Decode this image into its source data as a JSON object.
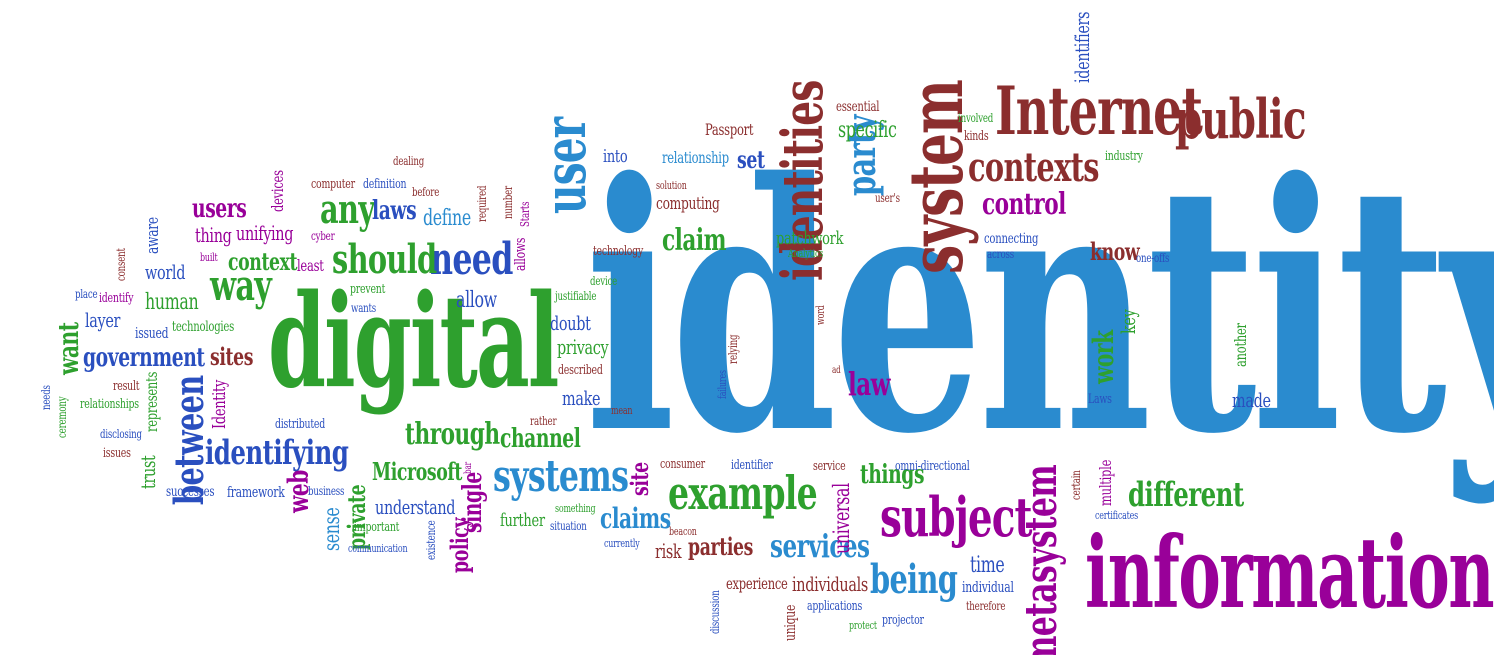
{
  "words": [
    {
      "text": "identity",
      "color": "#2a8bcf"
    },
    {
      "text": "information",
      "color": "#990099"
    },
    {
      "text": "digital",
      "color": "#2ea02e"
    },
    {
      "text": "Internet",
      "color": "#8b2e2e"
    },
    {
      "text": "public",
      "color": "#8b2e2e"
    },
    {
      "text": "system",
      "color": "#8b2e2e"
    },
    {
      "text": "identities",
      "color": "#8b2e2e"
    },
    {
      "text": "contexts",
      "color": "#8b2e2e"
    },
    {
      "text": "control",
      "color": "#990099"
    },
    {
      "text": "party",
      "color": "#2a8bcf"
    },
    {
      "text": "user",
      "color": "#2a8bcf"
    },
    {
      "text": "need",
      "color": "#2a4fbf"
    },
    {
      "text": "should",
      "color": "#2ea02e"
    },
    {
      "text": "any",
      "color": "#2ea02e"
    },
    {
      "text": "way",
      "color": "#2ea02e"
    },
    {
      "text": "laws",
      "color": "#2a4fbf"
    },
    {
      "text": "define",
      "color": "#2a8bcf"
    },
    {
      "text": "context",
      "color": "#2ea02e"
    },
    {
      "text": "users",
      "color": "#990099"
    },
    {
      "text": "thing",
      "color": "#990099"
    },
    {
      "text": "unifying",
      "color": "#990099"
    },
    {
      "text": "world",
      "color": "#2a4fbf"
    },
    {
      "text": "human",
      "color": "#2ea02e"
    },
    {
      "text": "layer",
      "color": "#2a4fbf"
    },
    {
      "text": "want",
      "color": "#2ea02e"
    },
    {
      "text": "government",
      "color": "#2a4fbf"
    },
    {
      "text": "sites",
      "color": "#8b2e2e"
    },
    {
      "text": "between",
      "color": "#2a4fbf"
    },
    {
      "text": "identifying",
      "color": "#2a4fbf"
    },
    {
      "text": "through",
      "color": "#2ea02e"
    },
    {
      "text": "channel",
      "color": "#2ea02e"
    },
    {
      "text": "systems",
      "color": "#2a8bcf"
    },
    {
      "text": "example",
      "color": "#2ea02e"
    },
    {
      "text": "subject",
      "color": "#990099"
    },
    {
      "text": "metasystem",
      "color": "#990099"
    },
    {
      "text": "being",
      "color": "#2a8bcf"
    },
    {
      "text": "services",
      "color": "#2a8bcf"
    },
    {
      "text": "claims",
      "color": "#2a8bcf"
    },
    {
      "text": "parties",
      "color": "#8b2e2e"
    },
    {
      "text": "different",
      "color": "#2ea02e"
    },
    {
      "text": "claim",
      "color": "#2ea02e"
    },
    {
      "text": "law",
      "color": "#990099"
    },
    {
      "text": "allow",
      "color": "#2a4fbf"
    },
    {
      "text": "Microsoft",
      "color": "#2ea02e"
    },
    {
      "text": "web",
      "color": "#990099"
    },
    {
      "text": "things",
      "color": "#2ea02e"
    },
    {
      "text": "site",
      "color": "#990099"
    },
    {
      "text": "set",
      "color": "#2a4fbf"
    },
    {
      "text": "specific",
      "color": "#2ea02e"
    },
    {
      "text": "know",
      "color": "#8b2e2e"
    },
    {
      "text": "work",
      "color": "#2ea02e"
    },
    {
      "text": "key",
      "color": "#2ea02e"
    },
    {
      "text": "made",
      "color": "#2a4fbf"
    },
    {
      "text": "time",
      "color": "#2a4fbf"
    },
    {
      "text": "make",
      "color": "#2a4fbf"
    },
    {
      "text": "privacy",
      "color": "#2ea02e"
    },
    {
      "text": "doubt",
      "color": "#2a4fbf"
    },
    {
      "text": "understand",
      "color": "#2a4fbf"
    },
    {
      "text": "Identity",
      "color": "#990099"
    },
    {
      "text": "further",
      "color": "#2ea02e"
    },
    {
      "text": "policy",
      "color": "#990099"
    },
    {
      "text": "single",
      "color": "#990099"
    },
    {
      "text": "sense",
      "color": "#2a8bcf"
    },
    {
      "text": "private",
      "color": "#2ea02e"
    },
    {
      "text": "trust",
      "color": "#2ea02e"
    },
    {
      "text": "universal",
      "color": "#990099"
    },
    {
      "text": "individuals",
      "color": "#8b2e2e"
    },
    {
      "text": "experience",
      "color": "#8b2e2e"
    },
    {
      "text": "risk",
      "color": "#8b2e2e"
    },
    {
      "text": "patchwork",
      "color": "#2ea02e"
    },
    {
      "text": "identifiers",
      "color": "#2a4fbf"
    },
    {
      "text": "into",
      "color": "#2a4fbf"
    },
    {
      "text": "relationship",
      "color": "#2a8bcf"
    },
    {
      "text": "computing",
      "color": "#8b2e2e"
    },
    {
      "text": "Passport",
      "color": "#8b2e2e"
    },
    {
      "text": "essential",
      "color": "#8b2e2e"
    },
    {
      "text": "industry",
      "color": "#2ea02e"
    },
    {
      "text": "involved",
      "color": "#2ea02e"
    },
    {
      "text": "kinds",
      "color": "#8b2e2e"
    },
    {
      "text": "connecting",
      "color": "#2a4fbf"
    },
    {
      "text": "across",
      "color": "#2a4fbf"
    },
    {
      "text": "one-offs",
      "color": "#2a4fbf"
    },
    {
      "text": "Analytics",
      "color": "#2ea02e"
    },
    {
      "text": "technology",
      "color": "#8b2e2e"
    },
    {
      "text": "user's",
      "color": "#8b2e2e"
    },
    {
      "text": "solution",
      "color": "#8b2e2e"
    },
    {
      "text": "device",
      "color": "#2ea02e"
    },
    {
      "text": "justifiable",
      "color": "#2ea02e"
    },
    {
      "text": "allows",
      "color": "#990099"
    },
    {
      "text": "Starts",
      "color": "#990099"
    },
    {
      "text": "number",
      "color": "#8b2e2e"
    },
    {
      "text": "required",
      "color": "#8b2e2e"
    },
    {
      "text": "before",
      "color": "#8b2e2e"
    },
    {
      "text": "definition",
      "color": "#2a4fbf"
    },
    {
      "text": "computer",
      "color": "#8b2e2e"
    },
    {
      "text": "dealing",
      "color": "#8b2e2e"
    },
    {
      "text": "devices",
      "color": "#990099"
    },
    {
      "text": "cyber",
      "color": "#990099"
    },
    {
      "text": "least",
      "color": "#990099"
    },
    {
      "text": "prevent",
      "color": "#2ea02e"
    },
    {
      "text": "wants",
      "color": "#2a4fbf"
    },
    {
      "text": "issued",
      "color": "#2a4fbf"
    },
    {
      "text": "technologies",
      "color": "#2ea02e"
    },
    {
      "text": "represents",
      "color": "#2ea02e"
    },
    {
      "text": "result",
      "color": "#8b2e2e"
    },
    {
      "text": "relationships",
      "color": "#2ea02e"
    },
    {
      "text": "needs",
      "color": "#2a4fbf"
    },
    {
      "text": "ceremony",
      "color": "#2ea02e"
    },
    {
      "text": "disclosing",
      "color": "#2a4fbf"
    },
    {
      "text": "issues",
      "color": "#8b2e2e"
    },
    {
      "text": "place",
      "color": "#2a4fbf"
    },
    {
      "text": "identify",
      "color": "#990099"
    },
    {
      "text": "consent",
      "color": "#8b2e2e"
    },
    {
      "text": "aware",
      "color": "#2a4fbf"
    },
    {
      "text": "built",
      "color": "#990099"
    },
    {
      "text": "distributed",
      "color": "#2a4fbf"
    },
    {
      "text": "successes",
      "color": "#2a4fbf"
    },
    {
      "text": "framework",
      "color": "#2a4fbf"
    },
    {
      "text": "business",
      "color": "#2a4fbf"
    },
    {
      "text": "important",
      "color": "#2ea02e"
    },
    {
      "text": "communication",
      "color": "#2a4fbf"
    },
    {
      "text": "existence",
      "color": "#2a4fbf"
    },
    {
      "text": "something",
      "color": "#2ea02e"
    },
    {
      "text": "situation",
      "color": "#2a4fbf"
    },
    {
      "text": "currently",
      "color": "#2a4fbf"
    },
    {
      "text": "beacon",
      "color": "#8b2e2e"
    },
    {
      "text": "rather",
      "color": "#8b2e2e"
    },
    {
      "text": "mean",
      "color": "#8b2e2e"
    },
    {
      "text": "described",
      "color": "#8b2e2e"
    },
    {
      "text": "consumer",
      "color": "#8b2e2e"
    },
    {
      "text": "identifier",
      "color": "#2a4fbf"
    },
    {
      "text": "service",
      "color": "#8b2e2e"
    },
    {
      "text": "omni-directional",
      "color": "#2a4fbf"
    },
    {
      "text": "certain",
      "color": "#8b2e2e"
    },
    {
      "text": "multiple",
      "color": "#990099"
    },
    {
      "text": "certificates",
      "color": "#2a4fbf"
    },
    {
      "text": "individual",
      "color": "#2a4fbf"
    },
    {
      "text": "therefore",
      "color": "#8b2e2e"
    },
    {
      "text": "applications",
      "color": "#2a4fbf"
    },
    {
      "text": "protect",
      "color": "#2ea02e"
    },
    {
      "text": "projector",
      "color": "#2a4fbf"
    },
    {
      "text": "unique",
      "color": "#8b2e2e"
    },
    {
      "text": "discussion",
      "color": "#2a4fbf"
    },
    {
      "text": "failures",
      "color": "#2a4fbf"
    },
    {
      "text": "relying",
      "color": "#8b2e2e"
    },
    {
      "text": "word",
      "color": "#8b2e2e"
    },
    {
      "text": "ad",
      "color": "#8b2e2e"
    },
    {
      "text": "Laws",
      "color": "#2a4fbf"
    },
    {
      "text": "another",
      "color": "#2ea02e"
    },
    {
      "text": "bar",
      "color": "#990099"
    }
  ]
}
